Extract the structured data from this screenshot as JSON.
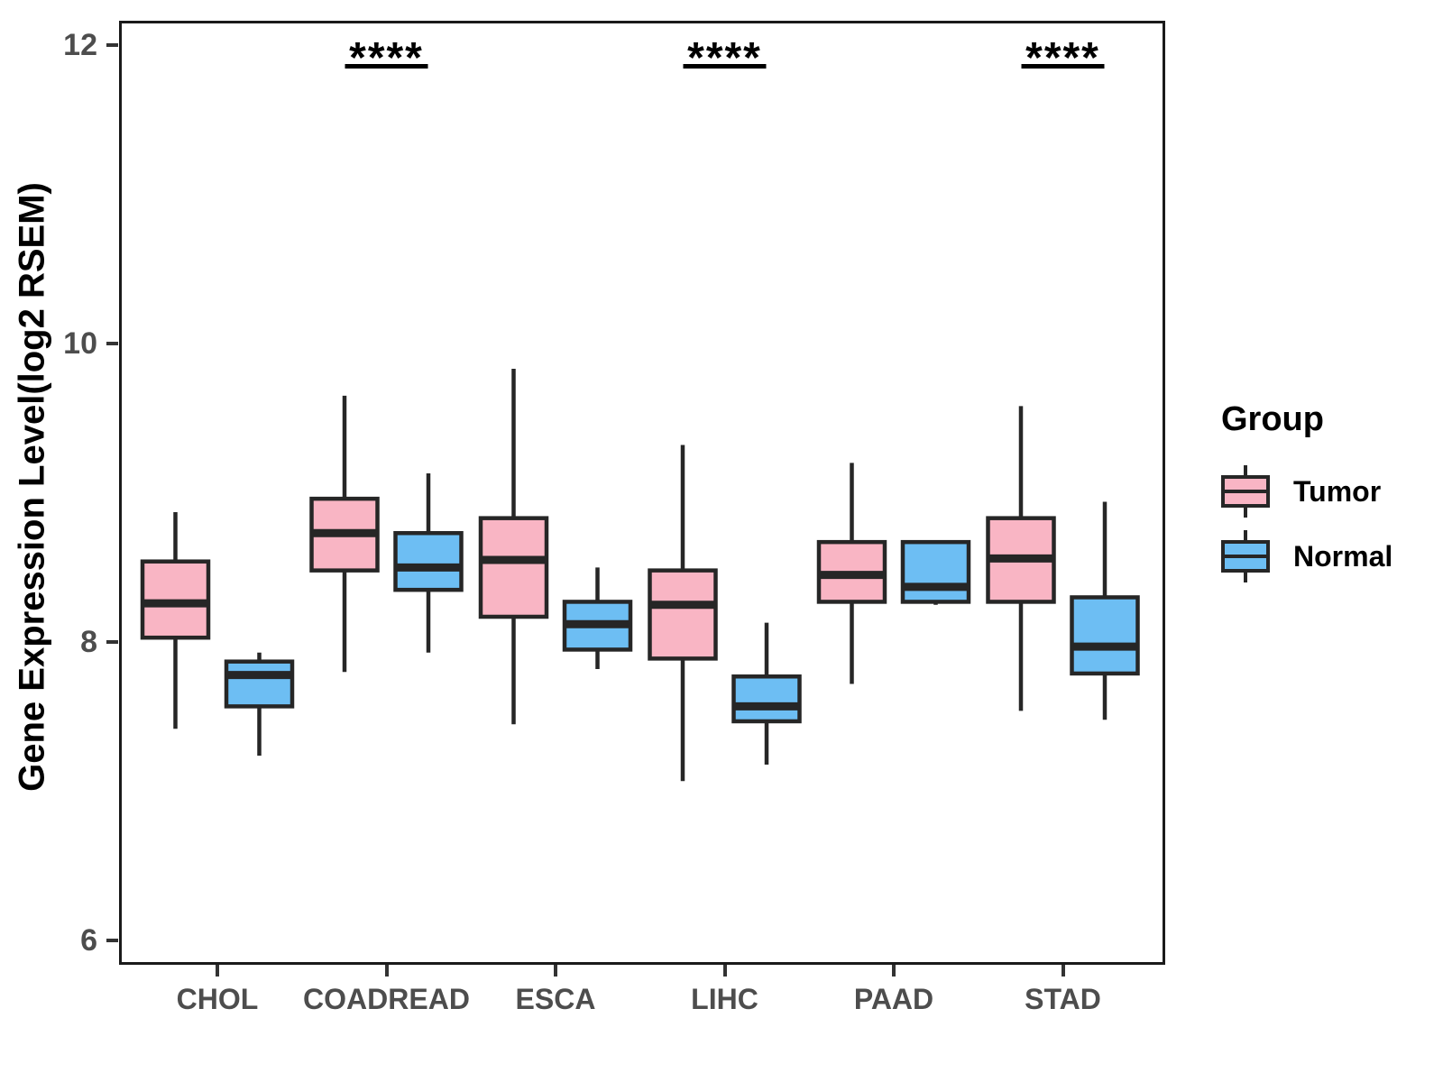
{
  "chart_data": {
    "type": "boxplot",
    "title": "",
    "xlabel": "",
    "ylabel": "Gene Expression Level(log2 RSEM)",
    "categories": [
      "CHOL",
      "COADREAD",
      "ESCA",
      "LIHC",
      "PAAD",
      "STAD"
    ],
    "groups": [
      "Tumor",
      "Normal"
    ],
    "ylim": [
      5.84,
      12.16
    ],
    "yticks": [
      6,
      8,
      10,
      12
    ],
    "grid": false,
    "legend": {
      "title": "Group",
      "position": "right"
    },
    "box_outline_color": "#262626",
    "significance_color": "#000000",
    "series": [
      {
        "name": "Tumor",
        "color": "#F9B5C4",
        "boxes": [
          {
            "category": "CHOL",
            "whisker_low": 7.42,
            "q1": 8.03,
            "median": 8.26,
            "q3": 8.54,
            "whisker_high": 8.87
          },
          {
            "category": "COADREAD",
            "whisker_low": 7.8,
            "q1": 8.48,
            "median": 8.73,
            "q3": 8.96,
            "whisker_high": 9.65
          },
          {
            "category": "ESCA",
            "whisker_low": 7.45,
            "q1": 8.17,
            "median": 8.55,
            "q3": 8.83,
            "whisker_high": 9.83
          },
          {
            "category": "LIHC",
            "whisker_low": 7.07,
            "q1": 7.89,
            "median": 8.25,
            "q3": 8.48,
            "whisker_high": 9.32
          },
          {
            "category": "PAAD",
            "whisker_low": 7.72,
            "q1": 8.27,
            "median": 8.45,
            "q3": 8.67,
            "whisker_high": 9.2
          },
          {
            "category": "STAD",
            "whisker_low": 7.54,
            "q1": 8.27,
            "median": 8.56,
            "q3": 8.83,
            "whisker_high": 9.58
          }
        ]
      },
      {
        "name": "Normal",
        "color": "#6DBEF3",
        "boxes": [
          {
            "category": "CHOL",
            "whisker_low": 7.24,
            "q1": 7.57,
            "median": 7.78,
            "q3": 7.87,
            "whisker_high": 7.93
          },
          {
            "category": "COADREAD",
            "whisker_low": 7.93,
            "q1": 8.35,
            "median": 8.5,
            "q3": 8.73,
            "whisker_high": 9.13
          },
          {
            "category": "ESCA",
            "whisker_low": 7.82,
            "q1": 7.95,
            "median": 8.12,
            "q3": 8.27,
            "whisker_high": 8.5
          },
          {
            "category": "LIHC",
            "whisker_low": 7.18,
            "q1": 7.47,
            "median": 7.57,
            "q3": 7.77,
            "whisker_high": 8.13
          },
          {
            "category": "PAAD",
            "whisker_low": 8.25,
            "q1": 8.27,
            "median": 8.37,
            "q3": 8.67,
            "whisker_high": 8.67
          },
          {
            "category": "STAD",
            "whisker_low": 7.48,
            "q1": 7.79,
            "median": 7.97,
            "q3": 8.3,
            "whisker_high": 8.94
          }
        ]
      }
    ],
    "significance": [
      {
        "category": "COADREAD",
        "label": "****"
      },
      {
        "category": "LIHC",
        "label": "****"
      },
      {
        "category": "STAD",
        "label": "****"
      }
    ]
  }
}
